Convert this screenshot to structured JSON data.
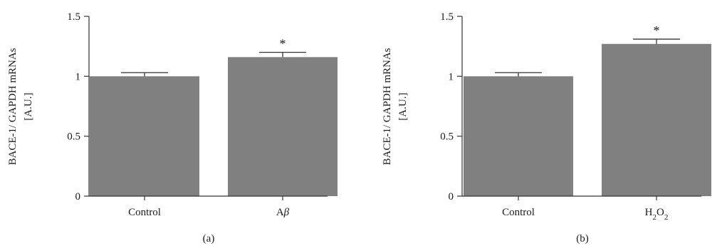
{
  "colors": {
    "bar": "#808080",
    "axis": "#333333",
    "text": "#1a1a1a"
  },
  "chart_data": [
    {
      "type": "bar",
      "panel_label": "(a)",
      "ylabel_line1": "BACE-1/ GAPDH mRNAs",
      "ylabel_line2": "[A.U.]",
      "categories": [
        {
          "text": "Control"
        },
        {
          "text": "A",
          "italic": "β"
        }
      ],
      "values": [
        1.0,
        1.16
      ],
      "errors": [
        0.03,
        0.04
      ],
      "significance": [
        "",
        "*"
      ],
      "ylim": [
        0,
        1.5
      ],
      "yticks": [
        0,
        0.5,
        1,
        1.5
      ],
      "ytick_labels": [
        "0",
        "0.5",
        "1",
        "1.5"
      ],
      "grid": false
    },
    {
      "type": "bar",
      "panel_label": "(b)",
      "ylabel_line1": "BACE-1/ GAPDH mRNAs",
      "ylabel_line2": "[A.U.]",
      "categories": [
        {
          "text": "Control"
        },
        {
          "text": "H",
          "sub1": "2",
          "mid": "O",
          "sub2": "2"
        }
      ],
      "values": [
        1.0,
        1.27
      ],
      "errors": [
        0.03,
        0.04
      ],
      "significance": [
        "",
        "*"
      ],
      "ylim": [
        0,
        1.5
      ],
      "yticks": [
        0,
        0.5,
        1,
        1.5
      ],
      "ytick_labels": [
        "0",
        "0.5",
        "1",
        "1.5"
      ],
      "grid": false
    }
  ]
}
